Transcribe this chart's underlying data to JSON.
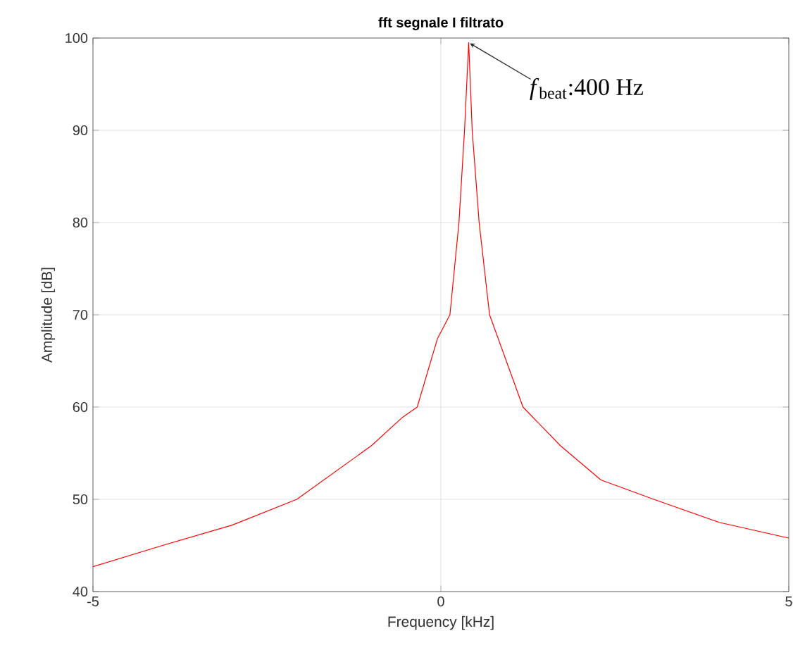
{
  "chart_data": {
    "type": "line",
    "title": "fft segnale I filtrato",
    "xlabel": "Frequency [kHz]",
    "ylabel": "Amplitude [dB]",
    "x": [
      -5,
      -4,
      -3,
      -2.07,
      -1.0,
      -0.55,
      -0.34,
      -0.05,
      0.13,
      0.26,
      0.34,
      0.4,
      0.45,
      0.55,
      0.7,
      1.18,
      1.72,
      2.3,
      3.06,
      4,
      5
    ],
    "series": [
      {
        "color": "#ff0000",
        "values": [
          42.7,
          45.0,
          47.2,
          50,
          55.8,
          58.9,
          60,
          67.4,
          70,
          80,
          90,
          99.5,
          90,
          80,
          70,
          60,
          55.8,
          52.1,
          50,
          47.5,
          45.8
        ]
      }
    ],
    "xlim": [
      -5,
      5
    ],
    "xticks": [
      -5,
      0,
      5
    ],
    "ylim": [
      40,
      100
    ],
    "yticks": [
      40,
      50,
      60,
      70,
      80,
      90,
      100
    ],
    "grid": true,
    "line_style": "solid",
    "marker": "none",
    "annotations": [
      {
        "text": "*f*$_{beat}$:400 Hz",
        "x": 0.4,
        "y": 99.5
      }
    ]
  }
}
